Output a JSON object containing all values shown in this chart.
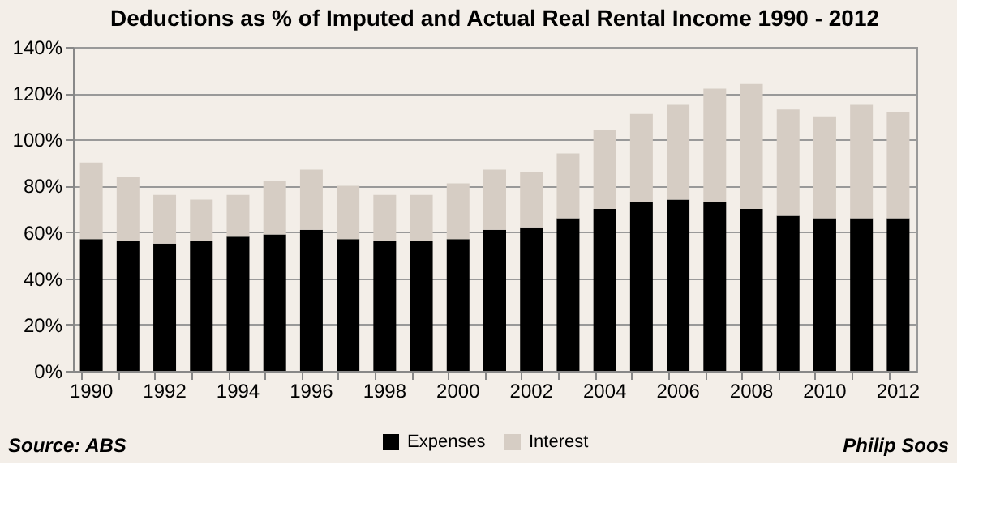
{
  "chart_data": {
    "type": "bar",
    "title": "Deductions as % of Imputed and Actual Real Rental Income 1990 - 2012",
    "categories": [
      "1990",
      null,
      "1992",
      null,
      "1994",
      null,
      "1996",
      null,
      "1998",
      null,
      "2000",
      null,
      "2002",
      null,
      "2004",
      null,
      "2006",
      null,
      "2008",
      null,
      "2010",
      null,
      "2012"
    ],
    "stacked": true,
    "series": [
      {
        "name": "Expenses",
        "color": "#000000",
        "values": [
          57,
          56,
          55,
          56,
          58,
          59,
          61,
          57,
          56,
          56,
          57,
          61,
          62,
          66,
          70,
          73,
          74,
          73,
          70,
          67,
          66,
          66,
          66
        ]
      },
      {
        "name": "Interest",
        "color": "#d6cdc4",
        "values": [
          33,
          28,
          21,
          18,
          18,
          23,
          26,
          23,
          20,
          20,
          24,
          26,
          24,
          28,
          34,
          38,
          41,
          49,
          54,
          46,
          44,
          49,
          46
        ]
      }
    ],
    "ylim": [
      0,
      140
    ],
    "yticks": [
      {
        "value": 0,
        "label": "0%"
      },
      {
        "value": 20,
        "label": "20%"
      },
      {
        "value": 40,
        "label": "40%"
      },
      {
        "value": 60,
        "label": "60%"
      },
      {
        "value": 80,
        "label": "80%"
      },
      {
        "value": 100,
        "label": "100%"
      },
      {
        "value": 120,
        "label": "120%"
      },
      {
        "value": 140,
        "label": "140%"
      }
    ],
    "grid": "y",
    "legend": "bottom",
    "annotations": [
      "Source: ABS",
      "Philip Soos"
    ]
  }
}
